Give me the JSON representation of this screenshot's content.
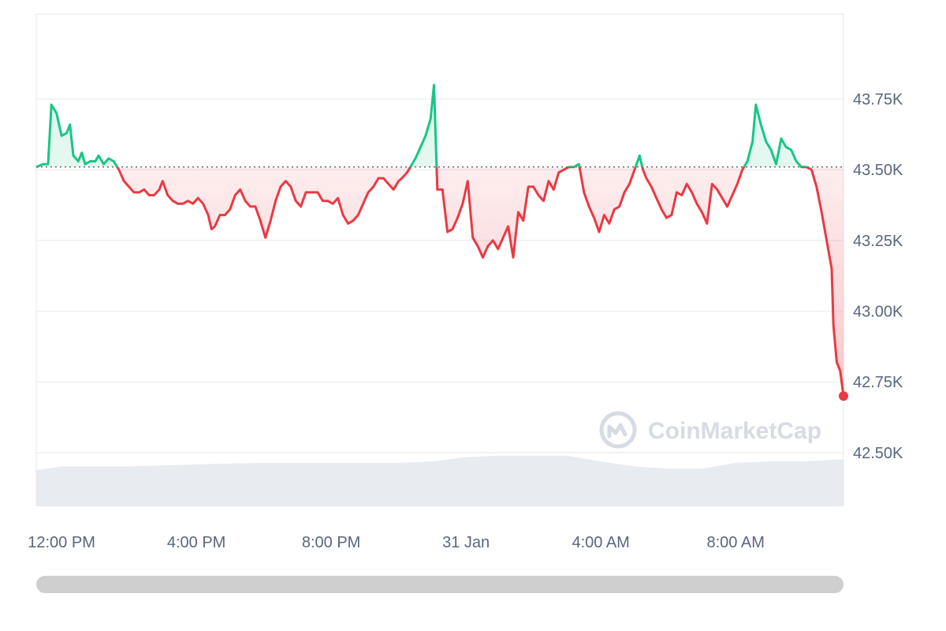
{
  "chart_data": {
    "type": "line",
    "baseline": 43.51,
    "ylim": [
      42.31,
      44.05
    ],
    "y_ticks": [
      {
        "value": 43.75,
        "label": "43.75K"
      },
      {
        "value": 43.5,
        "label": "43.50K"
      },
      {
        "value": 43.25,
        "label": "43.25K"
      },
      {
        "value": 43.0,
        "label": "43.00K"
      },
      {
        "value": 42.75,
        "label": "42.75K"
      },
      {
        "value": 42.5,
        "label": "42.50K"
      }
    ],
    "x_ticks": [
      {
        "value": 0,
        "label": "12:00 PM"
      },
      {
        "value": 4,
        "label": "4:00 PM"
      },
      {
        "value": 8,
        "label": "8:00 PM"
      },
      {
        "value": 12,
        "label": "31 Jan"
      },
      {
        "value": 16,
        "label": "4:00 AM"
      },
      {
        "value": 20,
        "label": "8:00 AM"
      }
    ],
    "xlim": [
      -0.75,
      23.2
    ],
    "price": [
      [
        -0.75,
        43.51
      ],
      [
        -0.55,
        43.52
      ],
      [
        -0.4,
        43.52
      ],
      [
        -0.3,
        43.73
      ],
      [
        -0.15,
        43.7
      ],
      [
        0,
        43.62
      ],
      [
        0.15,
        43.63
      ],
      [
        0.25,
        43.66
      ],
      [
        0.35,
        43.55
      ],
      [
        0.5,
        43.53
      ],
      [
        0.6,
        43.56
      ],
      [
        0.7,
        43.52
      ],
      [
        0.85,
        43.53
      ],
      [
        1.0,
        43.53
      ],
      [
        1.1,
        43.55
      ],
      [
        1.25,
        43.52
      ],
      [
        1.4,
        43.54
      ],
      [
        1.55,
        43.53
      ],
      [
        1.7,
        43.5
      ],
      [
        1.85,
        43.46
      ],
      [
        2.0,
        43.44
      ],
      [
        2.15,
        43.42
      ],
      [
        2.3,
        43.42
      ],
      [
        2.45,
        43.43
      ],
      [
        2.6,
        43.41
      ],
      [
        2.75,
        43.41
      ],
      [
        2.9,
        43.43
      ],
      [
        3.0,
        43.46
      ],
      [
        3.15,
        43.41
      ],
      [
        3.3,
        43.39
      ],
      [
        3.45,
        43.38
      ],
      [
        3.6,
        43.38
      ],
      [
        3.75,
        43.39
      ],
      [
        3.9,
        43.38
      ],
      [
        4.05,
        43.4
      ],
      [
        4.2,
        43.38
      ],
      [
        4.35,
        43.34
      ],
      [
        4.45,
        43.29
      ],
      [
        4.55,
        43.3
      ],
      [
        4.7,
        43.34
      ],
      [
        4.85,
        43.34
      ],
      [
        5.0,
        43.36
      ],
      [
        5.15,
        43.41
      ],
      [
        5.3,
        43.43
      ],
      [
        5.45,
        43.39
      ],
      [
        5.6,
        43.37
      ],
      [
        5.75,
        43.37
      ],
      [
        5.9,
        43.32
      ],
      [
        6.05,
        43.26
      ],
      [
        6.2,
        43.32
      ],
      [
        6.35,
        43.39
      ],
      [
        6.5,
        43.44
      ],
      [
        6.65,
        43.46
      ],
      [
        6.8,
        43.44
      ],
      [
        6.95,
        43.39
      ],
      [
        7.1,
        43.37
      ],
      [
        7.25,
        43.42
      ],
      [
        7.45,
        43.42
      ],
      [
        7.6,
        43.42
      ],
      [
        7.75,
        43.39
      ],
      [
        7.9,
        43.39
      ],
      [
        8.05,
        43.38
      ],
      [
        8.2,
        43.4
      ],
      [
        8.35,
        43.34
      ],
      [
        8.5,
        43.31
      ],
      [
        8.65,
        43.32
      ],
      [
        8.8,
        43.34
      ],
      [
        8.95,
        43.38
      ],
      [
        9.1,
        43.42
      ],
      [
        9.25,
        43.44
      ],
      [
        9.4,
        43.47
      ],
      [
        9.55,
        43.47
      ],
      [
        9.7,
        43.45
      ],
      [
        9.85,
        43.43
      ],
      [
        10.0,
        43.46
      ],
      [
        10.1,
        43.47
      ],
      [
        10.25,
        43.49
      ],
      [
        10.35,
        43.51
      ],
      [
        10.5,
        43.54
      ],
      [
        10.65,
        43.58
      ],
      [
        10.8,
        43.62
      ],
      [
        10.95,
        43.68
      ],
      [
        11.05,
        43.8
      ],
      [
        11.15,
        43.43
      ],
      [
        11.3,
        43.43
      ],
      [
        11.45,
        43.28
      ],
      [
        11.6,
        43.29
      ],
      [
        11.75,
        43.33
      ],
      [
        11.9,
        43.38
      ],
      [
        12.05,
        43.46
      ],
      [
        12.2,
        43.26
      ],
      [
        12.35,
        43.23
      ],
      [
        12.5,
        43.19
      ],
      [
        12.65,
        43.23
      ],
      [
        12.8,
        43.25
      ],
      [
        12.95,
        43.22
      ],
      [
        13.1,
        43.26
      ],
      [
        13.25,
        43.3
      ],
      [
        13.4,
        43.19
      ],
      [
        13.55,
        43.35
      ],
      [
        13.7,
        43.32
      ],
      [
        13.85,
        43.44
      ],
      [
        14.0,
        43.44
      ],
      [
        14.15,
        43.41
      ],
      [
        14.3,
        43.39
      ],
      [
        14.45,
        43.46
      ],
      [
        14.6,
        43.43
      ],
      [
        14.75,
        43.49
      ],
      [
        14.9,
        43.5
      ],
      [
        15.05,
        43.51
      ],
      [
        15.2,
        43.51
      ],
      [
        15.35,
        43.52
      ],
      [
        15.5,
        43.42
      ],
      [
        15.65,
        43.37
      ],
      [
        15.8,
        43.33
      ],
      [
        15.95,
        43.28
      ],
      [
        16.1,
        43.34
      ],
      [
        16.25,
        43.31
      ],
      [
        16.4,
        43.36
      ],
      [
        16.55,
        43.37
      ],
      [
        16.7,
        43.42
      ],
      [
        16.85,
        43.45
      ],
      [
        17.0,
        43.5
      ],
      [
        17.15,
        43.55
      ],
      [
        17.25,
        43.5
      ],
      [
        17.35,
        43.47
      ],
      [
        17.5,
        43.44
      ],
      [
        17.65,
        43.4
      ],
      [
        17.8,
        43.36
      ],
      [
        17.95,
        43.33
      ],
      [
        18.1,
        43.34
      ],
      [
        18.25,
        43.42
      ],
      [
        18.4,
        43.41
      ],
      [
        18.55,
        43.45
      ],
      [
        18.7,
        43.42
      ],
      [
        18.85,
        43.38
      ],
      [
        19.0,
        43.35
      ],
      [
        19.15,
        43.31
      ],
      [
        19.3,
        43.45
      ],
      [
        19.45,
        43.43
      ],
      [
        19.6,
        43.4
      ],
      [
        19.75,
        43.37
      ],
      [
        19.9,
        43.41
      ],
      [
        20.05,
        43.45
      ],
      [
        20.2,
        43.5
      ],
      [
        20.35,
        43.53
      ],
      [
        20.5,
        43.6
      ],
      [
        20.6,
        43.73
      ],
      [
        20.75,
        43.66
      ],
      [
        20.9,
        43.6
      ],
      [
        21.05,
        43.57
      ],
      [
        21.2,
        43.52
      ],
      [
        21.35,
        43.61
      ],
      [
        21.5,
        43.58
      ],
      [
        21.65,
        43.57
      ],
      [
        21.8,
        43.53
      ],
      [
        21.95,
        43.51
      ],
      [
        22.1,
        43.51
      ],
      [
        22.25,
        43.5
      ],
      [
        22.4,
        43.44
      ],
      [
        22.55,
        43.35
      ],
      [
        22.7,
        43.25
      ],
      [
        22.85,
        43.15
      ],
      [
        22.9,
        42.95
      ],
      [
        23.0,
        42.82
      ],
      [
        23.1,
        42.79
      ],
      [
        23.2,
        42.7
      ]
    ],
    "volume": [
      [
        -0.75,
        0.5
      ],
      [
        0.0,
        0.55
      ],
      [
        2.0,
        0.55
      ],
      [
        4.0,
        0.58
      ],
      [
        6.0,
        0.6
      ],
      [
        8.0,
        0.6
      ],
      [
        10.0,
        0.6
      ],
      [
        11.0,
        0.62
      ],
      [
        12.0,
        0.68
      ],
      [
        13.0,
        0.7
      ],
      [
        15.0,
        0.7
      ],
      [
        16.0,
        0.62
      ],
      [
        17.0,
        0.55
      ],
      [
        18.0,
        0.52
      ],
      [
        19.0,
        0.52
      ],
      [
        20.0,
        0.6
      ],
      [
        21.0,
        0.62
      ],
      [
        22.0,
        0.62
      ],
      [
        23.2,
        0.65
      ]
    ]
  },
  "watermark": {
    "text": "CoinMarketCap",
    "logo": "coinmarketcap-logo-icon"
  },
  "scrollbar": {
    "position": 0,
    "visible_fraction": 1
  },
  "colors": {
    "up_line": "#16c784",
    "down_line": "#ea3943",
    "down_fill": "#ea3943",
    "up_fill": "#16c784",
    "gridline": "#eceff3",
    "baseline": "#666666",
    "volume": "#e8ecf1",
    "tick_text": "#58667e",
    "scrollbar": "#cfcfcf"
  }
}
